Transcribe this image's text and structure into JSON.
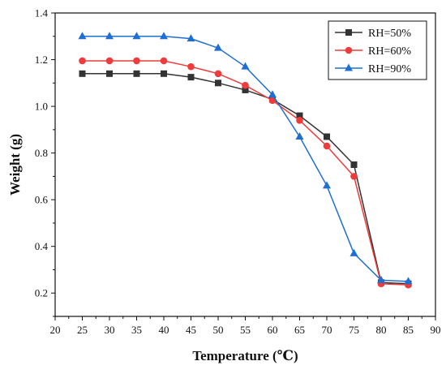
{
  "chart_data": {
    "type": "line",
    "xlabel": "Temperature (℃)",
    "ylabel": "Weight (g)",
    "xlim": [
      20,
      90
    ],
    "ylim": [
      0.1,
      1.4
    ],
    "x_ticks": [
      20,
      25,
      30,
      35,
      40,
      45,
      50,
      55,
      60,
      65,
      70,
      75,
      80,
      85,
      90
    ],
    "y_ticks": [
      0.2,
      0.4,
      0.6,
      0.8,
      1.0,
      1.2,
      1.4
    ],
    "x_tick_labels": [
      "20",
      "25",
      "30",
      "35",
      "40",
      "45",
      "50",
      "55",
      "60",
      "65",
      "70",
      "75",
      "80",
      "85",
      "90"
    ],
    "y_tick_labels": [
      "0.2",
      "0.4",
      "0.6",
      "0.8",
      "1.0",
      "1.2",
      "1.4"
    ],
    "grid": false,
    "legend_position": "top-right",
    "x": [
      25,
      30,
      35,
      40,
      45,
      50,
      55,
      60,
      65,
      70,
      75,
      80,
      85
    ],
    "series": [
      {
        "name": "RH=50%",
        "color": "#333333",
        "marker": "square",
        "values": [
          1.14,
          1.14,
          1.14,
          1.14,
          1.125,
          1.1,
          1.07,
          1.03,
          0.96,
          0.87,
          0.75,
          0.245,
          0.24
        ]
      },
      {
        "name": "RH=60%",
        "color": "#ee3b3b",
        "marker": "circle",
        "values": [
          1.195,
          1.195,
          1.195,
          1.195,
          1.17,
          1.14,
          1.09,
          1.025,
          0.94,
          0.83,
          0.7,
          0.24,
          0.235
        ]
      },
      {
        "name": "RH=90%",
        "color": "#1f6fd1",
        "marker": "triangle",
        "values": [
          1.3,
          1.3,
          1.3,
          1.3,
          1.29,
          1.25,
          1.17,
          1.05,
          0.87,
          0.66,
          0.37,
          0.255,
          0.25
        ]
      }
    ]
  }
}
